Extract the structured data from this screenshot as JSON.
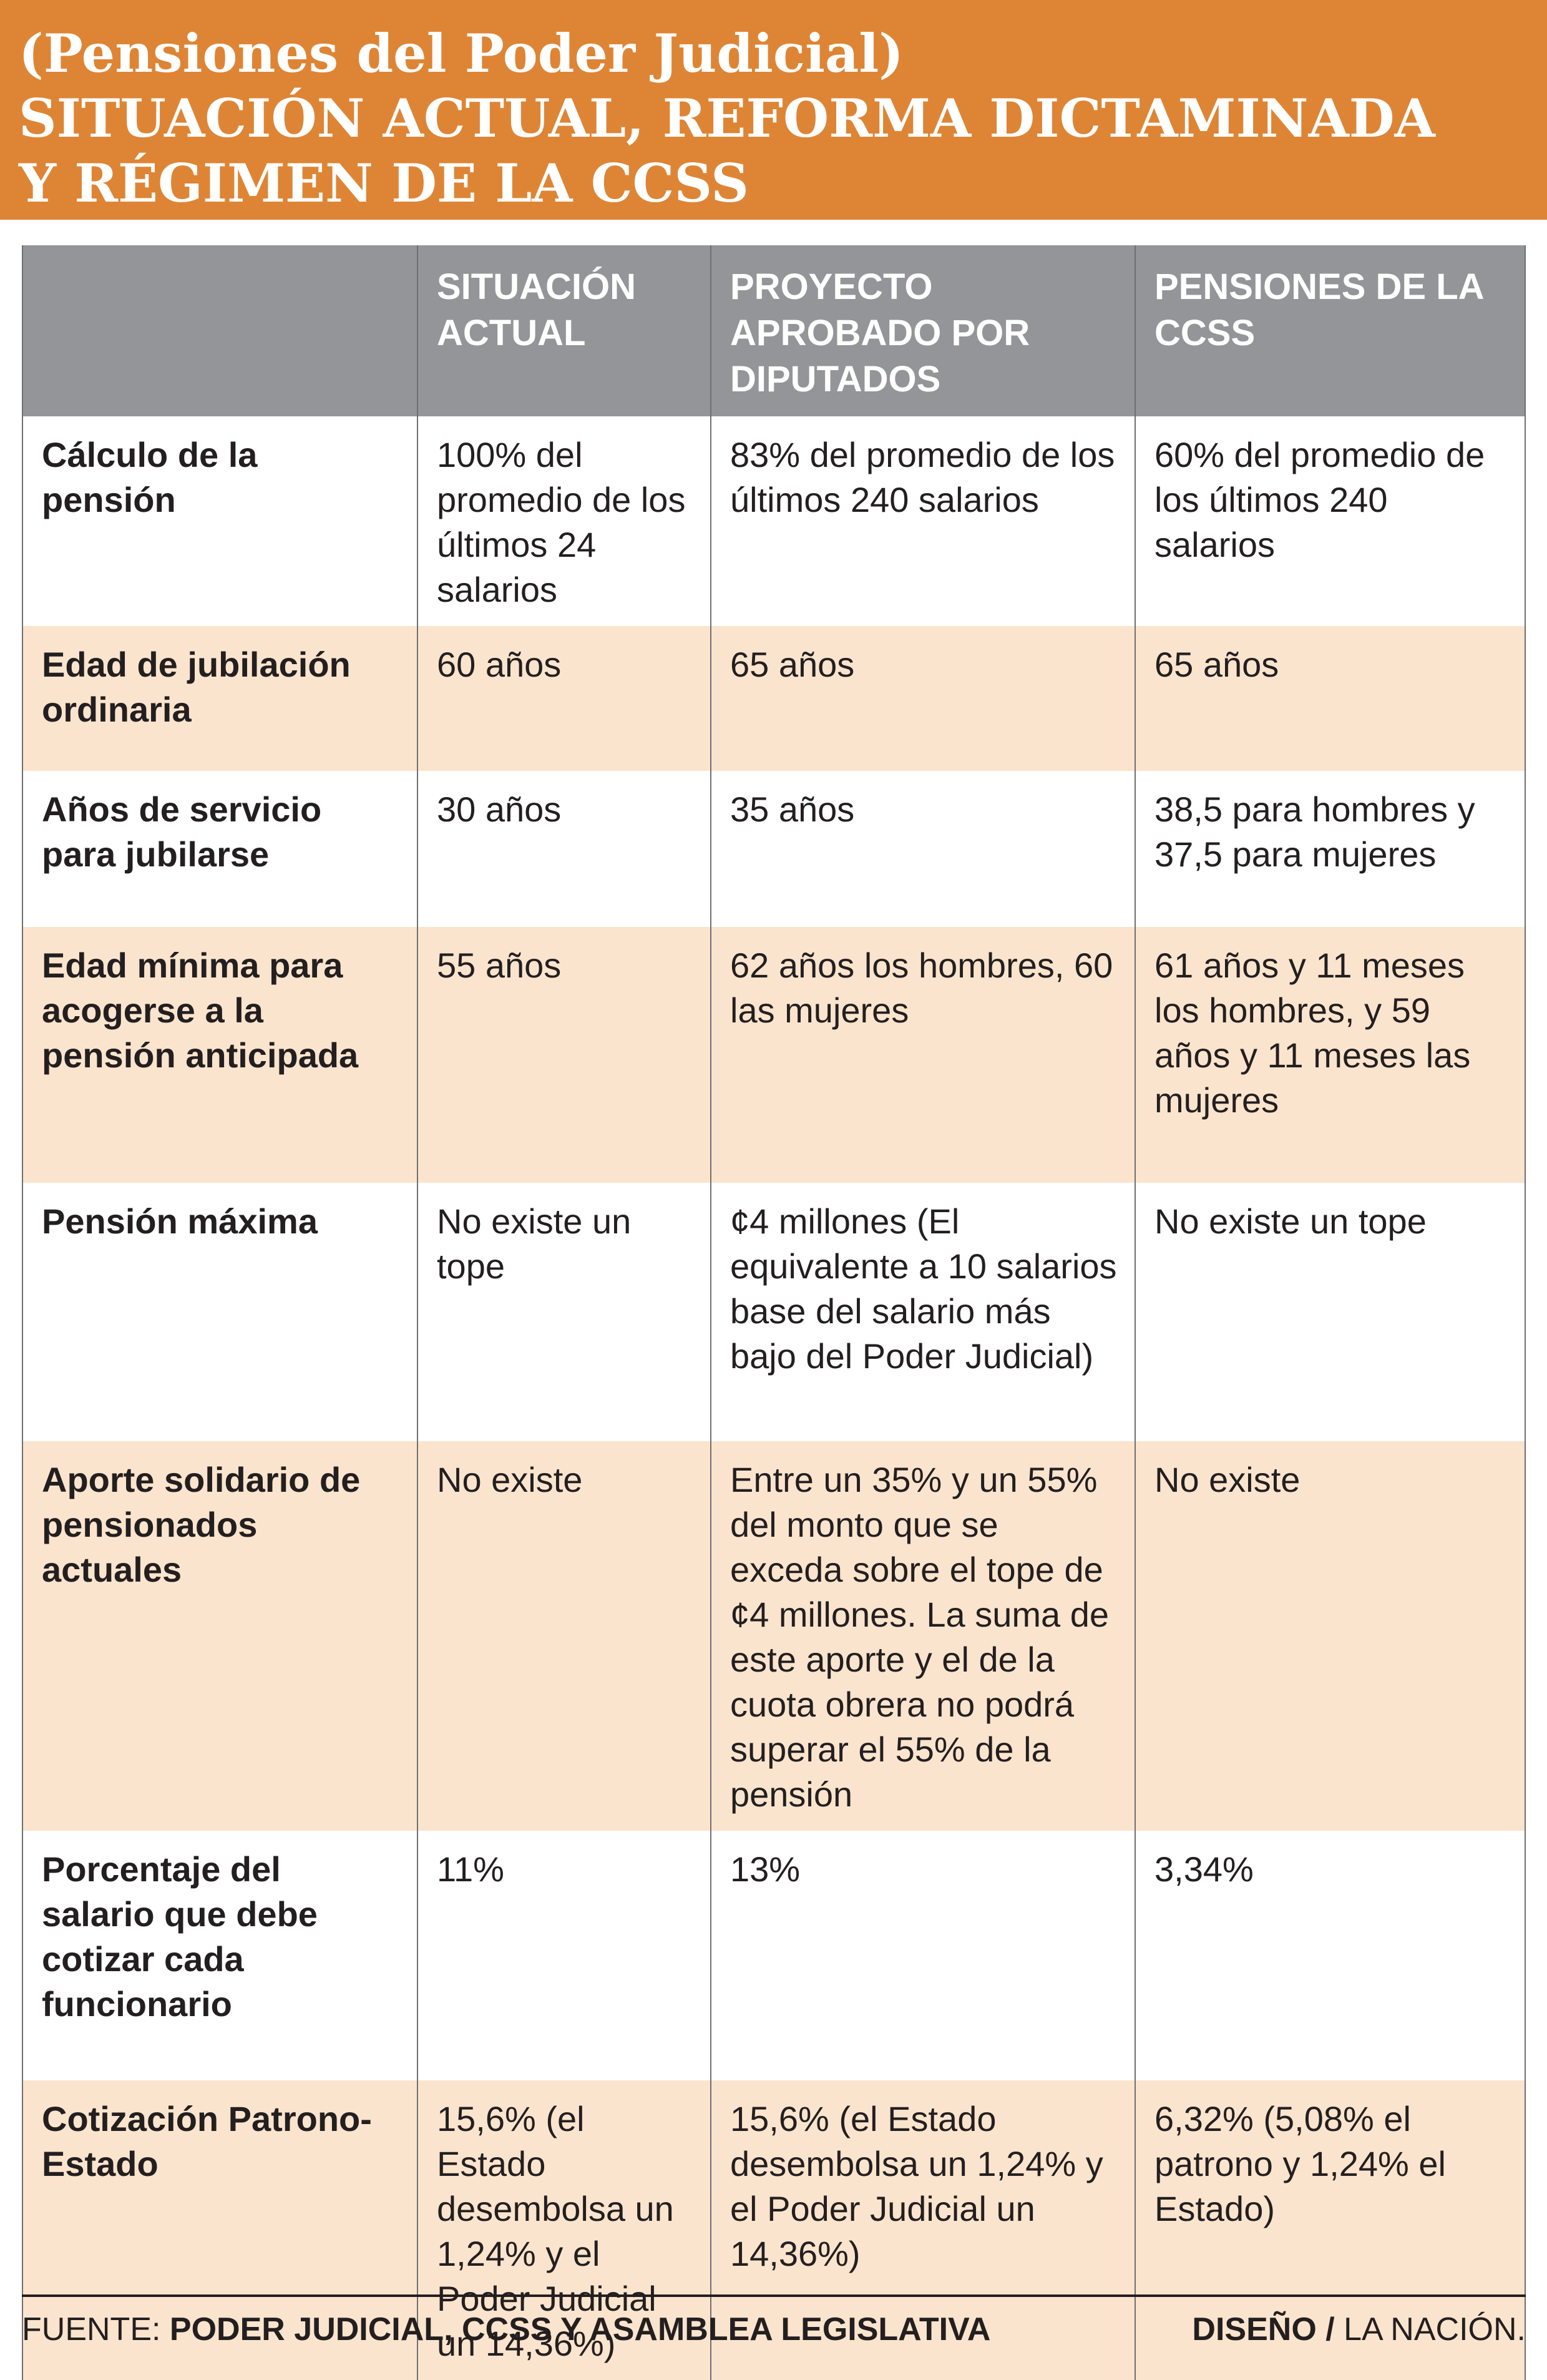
{
  "header": {
    "kicker": "(Pensiones del Poder Judicial)",
    "title_line1": "SITUACIÓN ACTUAL, REFORMA DICTAMINADA",
    "title_line2": "Y RÉGIMEN DE LA CCSS"
  },
  "chart_data": {
    "type": "table",
    "title": "(Pensiones del Poder Judicial) Situación actual, reforma dictaminada y régimen de la CCSS",
    "columns": [
      "",
      "SITUACIÓN ACTUAL",
      "PROYECTO APROBADO POR DIPUTADOS",
      "PENSIONES DE LA CCSS"
    ],
    "rows": [
      {
        "label": "Cálculo de la pensión",
        "values": [
          "100% del promedio de los últimos 24 salarios",
          "83% del promedio de los últimos 240 salarios",
          "60% del promedio de los últimos 240 salarios"
        ]
      },
      {
        "label": "Edad de jubilación ordinaria",
        "values": [
          "60 años",
          "65 años",
          "65 años"
        ]
      },
      {
        "label": "Años de servicio para jubilarse",
        "values": [
          "30 años",
          "35 años",
          "38,5 para hombres y 37,5 para mujeres"
        ]
      },
      {
        "label": "Edad mínima para acogerse a la pensión anticipada",
        "values": [
          "55 años",
          "62 años los hombres, 60 las mujeres",
          "61 años y 11 meses los hombres, y 59 años y 11 meses las mujeres"
        ]
      },
      {
        "label": "Pensión máxima",
        "values": [
          "No existe un tope",
          "¢4 millones (El equivalente a 10 salarios base del salario más bajo del Poder Judicial)",
          "No existe un tope"
        ]
      },
      {
        "label": "Aporte solidario de pensionados actuales",
        "values": [
          "No existe",
          "Entre un 35% y un 55% del monto que se exceda sobre el tope de ¢4 millones. La suma de este aporte y el de la cuota obrera no podrá superar el 55% de la pensión",
          "No existe"
        ]
      },
      {
        "label": "Porcentaje del salario que debe cotizar cada funcionario",
        "values": [
          "11%",
          "13%",
          "3,34%"
        ]
      },
      {
        "label": "Cotización Patrono-Estado",
        "values": [
          "15,6% (el Estado desembolsa un 1,24% y el Poder Judicial un 14,36%)",
          "15,6% (el Estado desembolsa un 1,24% y el Poder Judicial un 14,36%)",
          "6,32% (5,08% el patrono y 1,24% el Estado)"
        ]
      }
    ]
  },
  "footer": {
    "fuente_label": "FUENTE:",
    "fuente": "PODER JUDICIAL, CCSS Y ASAMBLEA LEGISLATIVA",
    "diseno_label": "DISEÑO /",
    "diseno_credit": "LA NACIÓN."
  },
  "colors": {
    "orange": "#DE8535",
    "header_gray": "#939598",
    "row_peach": "#FBE4CD",
    "text_dark": "#231F20",
    "divider": "#6E6F72",
    "white": "#FFFFFF"
  }
}
